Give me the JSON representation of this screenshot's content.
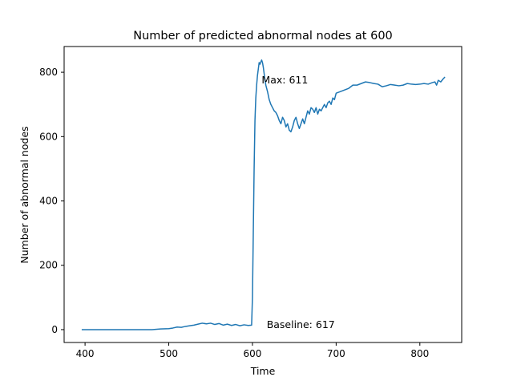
{
  "chart_data": {
    "type": "line",
    "title": "Number of predicted abnormal nodes at 600",
    "xlabel": "Time",
    "ylabel": "Number of abnormal nodes",
    "xlim": [
      375,
      850
    ],
    "ylim": [
      -40,
      880
    ],
    "xticks": [
      400,
      500,
      600,
      700,
      800
    ],
    "yticks": [
      0,
      200,
      400,
      600,
      800
    ],
    "grid": false,
    "line_color": "#1f77b4",
    "annotations": [
      {
        "text": "Max: 611",
        "x": 611,
        "y": 765
      },
      {
        "text": "Baseline: 617",
        "x": 617,
        "y": 5
      }
    ],
    "series": [
      {
        "x": [
          396,
          420,
          450,
          480,
          490,
          500,
          505,
          510,
          515,
          520,
          525,
          530,
          535,
          540,
          545,
          550,
          555,
          560,
          565,
          570,
          575,
          580,
          585,
          590,
          595,
          599,
          600,
          601,
          602,
          603,
          604,
          605,
          606,
          607,
          608,
          609,
          610,
          611,
          612,
          613,
          614,
          615,
          616,
          618,
          620,
          622,
          624,
          626,
          628,
          630,
          632,
          634,
          636,
          638,
          640,
          642,
          644,
          646,
          648,
          650,
          652,
          654,
          656,
          658,
          660,
          662,
          664,
          666,
          668,
          670,
          672,
          674,
          676,
          678,
          680,
          682,
          684,
          686,
          688,
          690,
          692,
          694,
          696,
          698,
          700,
          705,
          710,
          715,
          720,
          725,
          730,
          735,
          740,
          745,
          750,
          755,
          760,
          765,
          770,
          775,
          780,
          785,
          790,
          795,
          800,
          805,
          810,
          815,
          818,
          820,
          822,
          825,
          828,
          830
        ],
        "y": [
          0,
          0,
          0,
          0,
          2,
          3,
          5,
          8,
          7,
          10,
          12,
          14,
          17,
          20,
          18,
          20,
          16,
          19,
          14,
          17,
          13,
          16,
          12,
          15,
          13,
          14,
          100,
          300,
          500,
          650,
          720,
          760,
          790,
          810,
          830,
          825,
          832,
          838,
          830,
          815,
          795,
          775,
          760,
          740,
          715,
          700,
          690,
          680,
          675,
          665,
          650,
          640,
          660,
          650,
          630,
          640,
          620,
          615,
          630,
          650,
          660,
          640,
          625,
          640,
          655,
          640,
          660,
          680,
          670,
          690,
          685,
          675,
          690,
          670,
          685,
          680,
          690,
          700,
          690,
          705,
          710,
          700,
          720,
          715,
          735,
          740,
          745,
          750,
          760,
          760,
          765,
          770,
          768,
          765,
          763,
          755,
          758,
          762,
          760,
          758,
          760,
          765,
          763,
          762,
          763,
          765,
          763,
          768,
          770,
          760,
          775,
          770,
          780,
          785
        ]
      }
    ]
  }
}
